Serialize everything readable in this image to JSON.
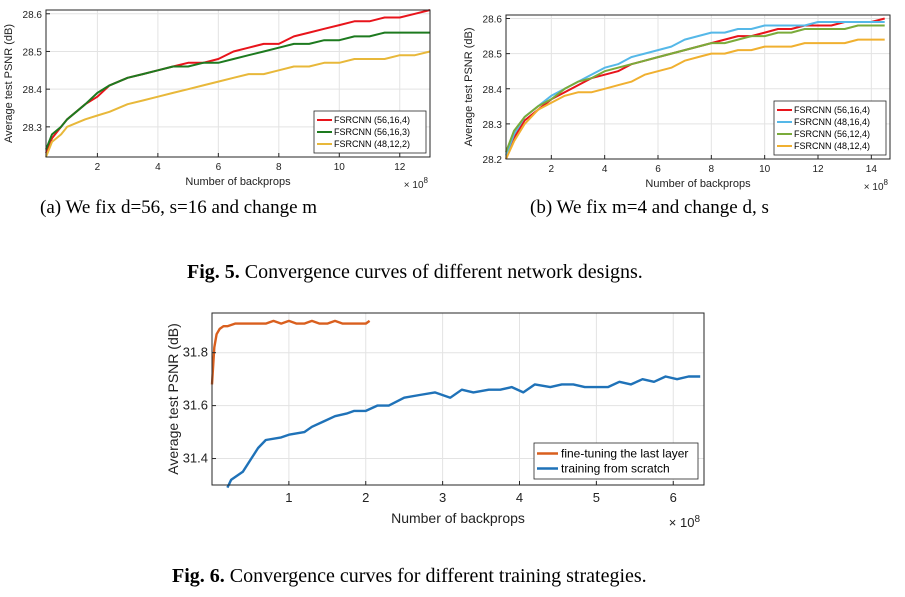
{
  "captions": {
    "sub_a": "(a) We fix d=56, s=16 and change m",
    "sub_b": "(b) We fix m=4 and change d, s",
    "fig5_label": "Fig. 5.",
    "fig5_text": " Convergence curves of different network designs.",
    "fig6_label": "Fig. 6.",
    "fig6_text": " Convergence curves for different training strategies."
  },
  "chart_data": [
    {
      "id": "chart-a",
      "type": "line",
      "xlabel": "Number of backprops",
      "ylabel": "Average test PSNR (dB)",
      "x_multiplier": "× 10^8",
      "xlim": [
        0.3,
        13
      ],
      "ylim": [
        28.22,
        28.61
      ],
      "xticks": [
        2,
        4,
        6,
        8,
        10,
        12
      ],
      "yticks": [
        28.3,
        28.4,
        28.5,
        28.6
      ],
      "grid": true,
      "legend_position": "bottom-right",
      "series": [
        {
          "name": "FSRCNN (56,16,4)",
          "color": "#e8141b",
          "x": [
            0.3,
            0.5,
            0.8,
            1.0,
            1.3,
            1.6,
            2.0,
            2.4,
            3.0,
            3.5,
            4.0,
            4.5,
            5.0,
            5.5,
            6.0,
            6.5,
            7.0,
            7.5,
            8.0,
            8.5,
            9.0,
            9.5,
            10.0,
            10.5,
            11.0,
            11.5,
            12.0,
            12.5,
            13.0
          ],
          "y": [
            28.23,
            28.27,
            28.3,
            28.32,
            28.34,
            28.36,
            28.38,
            28.41,
            28.43,
            28.44,
            28.45,
            28.46,
            28.47,
            28.47,
            28.48,
            28.5,
            28.51,
            28.52,
            28.52,
            28.54,
            28.55,
            28.56,
            28.57,
            28.58,
            28.58,
            28.59,
            28.59,
            28.6,
            28.61
          ]
        },
        {
          "name": "FSRCNN (56,16,3)",
          "color": "#1d7a1f",
          "x": [
            0.3,
            0.5,
            0.8,
            1.0,
            1.3,
            1.6,
            2.0,
            2.4,
            3.0,
            3.5,
            4.0,
            4.5,
            5.0,
            5.5,
            6.0,
            6.5,
            7.0,
            7.5,
            8.0,
            8.5,
            9.0,
            9.5,
            10.0,
            10.5,
            11.0,
            11.5,
            12.0,
            12.5,
            13.0
          ],
          "y": [
            28.24,
            28.28,
            28.3,
            28.32,
            28.34,
            28.36,
            28.39,
            28.41,
            28.43,
            28.44,
            28.45,
            28.46,
            28.46,
            28.47,
            28.47,
            28.48,
            28.49,
            28.5,
            28.51,
            28.52,
            28.52,
            28.53,
            28.53,
            28.54,
            28.54,
            28.55,
            28.55,
            28.55,
            28.55
          ]
        },
        {
          "name": "FSRCNN (48,12,2)",
          "color": "#e8b83a",
          "x": [
            0.3,
            0.5,
            0.8,
            1.0,
            1.3,
            1.6,
            2.0,
            2.4,
            3.0,
            3.5,
            4.0,
            4.5,
            5.0,
            5.5,
            6.0,
            6.5,
            7.0,
            7.5,
            8.0,
            8.5,
            9.0,
            9.5,
            10.0,
            10.5,
            11.0,
            11.5,
            12.0,
            12.5,
            13.0
          ],
          "y": [
            28.22,
            28.26,
            28.28,
            28.3,
            28.31,
            28.32,
            28.33,
            28.34,
            28.36,
            28.37,
            28.38,
            28.39,
            28.4,
            28.41,
            28.42,
            28.43,
            28.44,
            28.44,
            28.45,
            28.46,
            28.46,
            28.47,
            28.47,
            28.48,
            28.48,
            28.48,
            28.49,
            28.49,
            28.5
          ]
        }
      ]
    },
    {
      "id": "chart-b",
      "type": "line",
      "xlabel": "Number of backprops",
      "ylabel": "Average test PSNR (dB)",
      "x_multiplier": "× 10^8",
      "xlim": [
        0.3,
        14.7
      ],
      "ylim": [
        28.2,
        28.61
      ],
      "xticks": [
        2,
        4,
        6,
        8,
        10,
        12,
        14
      ],
      "yticks": [
        28.2,
        28.3,
        28.4,
        28.5,
        28.6
      ],
      "grid": true,
      "legend_position": "bottom-right",
      "series": [
        {
          "name": "FSRCNN (56,16,4)",
          "color": "#e8141b",
          "x": [
            0.3,
            0.6,
            1.0,
            1.5,
            2.0,
            2.5,
            3.0,
            3.5,
            4.0,
            4.5,
            5.0,
            5.5,
            6.0,
            6.5,
            7.0,
            7.5,
            8.0,
            8.5,
            9.0,
            9.5,
            10.0,
            10.5,
            11.0,
            11.5,
            12.0,
            12.5,
            13.0,
            13.5,
            14.0,
            14.5
          ],
          "y": [
            28.2,
            28.26,
            28.31,
            28.34,
            28.37,
            28.39,
            28.41,
            28.43,
            28.44,
            28.45,
            28.47,
            28.48,
            28.49,
            28.5,
            28.51,
            28.52,
            28.53,
            28.54,
            28.55,
            28.55,
            28.56,
            28.57,
            28.57,
            28.58,
            28.58,
            28.58,
            28.59,
            28.59,
            28.59,
            28.6
          ]
        },
        {
          "name": "FSRCNN (48,16,4)",
          "color": "#55b8e8",
          "x": [
            0.3,
            0.6,
            1.0,
            1.5,
            2.0,
            2.5,
            3.0,
            3.5,
            4.0,
            4.5,
            5.0,
            5.5,
            6.0,
            6.5,
            7.0,
            7.5,
            8.0,
            8.5,
            9.0,
            9.5,
            10.0,
            10.5,
            11.0,
            11.5,
            12.0,
            12.5,
            13.0,
            13.5,
            14.0,
            14.5
          ],
          "y": [
            28.21,
            28.27,
            28.32,
            28.35,
            28.38,
            28.4,
            28.42,
            28.44,
            28.46,
            28.47,
            28.49,
            28.5,
            28.51,
            28.52,
            28.54,
            28.55,
            28.56,
            28.56,
            28.57,
            28.57,
            28.58,
            28.58,
            28.58,
            28.58,
            28.59,
            28.59,
            28.59,
            28.59,
            28.59,
            28.59
          ]
        },
        {
          "name": "FSRCNN (56,12,4)",
          "color": "#7aab3a",
          "x": [
            0.3,
            0.6,
            1.0,
            1.5,
            2.0,
            2.5,
            3.0,
            3.5,
            4.0,
            4.5,
            5.0,
            5.5,
            6.0,
            6.5,
            7.0,
            7.5,
            8.0,
            8.5,
            9.0,
            9.5,
            10.0,
            10.5,
            11.0,
            11.5,
            12.0,
            12.5,
            13.0,
            13.5,
            14.0,
            14.5
          ],
          "y": [
            28.22,
            28.28,
            28.32,
            28.35,
            28.37,
            28.4,
            28.42,
            28.43,
            28.45,
            28.46,
            28.47,
            28.48,
            28.49,
            28.5,
            28.51,
            28.52,
            28.53,
            28.53,
            28.54,
            28.55,
            28.55,
            28.56,
            28.56,
            28.57,
            28.57,
            28.57,
            28.57,
            28.58,
            28.58,
            28.58
          ]
        },
        {
          "name": "FSRCNN (48,12,4)",
          "color": "#f0b030",
          "x": [
            0.3,
            0.6,
            1.0,
            1.5,
            2.0,
            2.5,
            3.0,
            3.5,
            4.0,
            4.5,
            5.0,
            5.5,
            6.0,
            6.5,
            7.0,
            7.5,
            8.0,
            8.5,
            9.0,
            9.5,
            10.0,
            10.5,
            11.0,
            11.5,
            12.0,
            12.5,
            13.0,
            13.5,
            14.0,
            14.5
          ],
          "y": [
            28.2,
            28.25,
            28.3,
            28.34,
            28.36,
            28.38,
            28.39,
            28.39,
            28.4,
            28.41,
            28.42,
            28.44,
            28.45,
            28.46,
            28.48,
            28.49,
            28.5,
            28.5,
            28.51,
            28.51,
            28.52,
            28.52,
            28.52,
            28.53,
            28.53,
            28.53,
            28.53,
            28.54,
            28.54,
            28.54
          ]
        }
      ]
    },
    {
      "id": "chart-c",
      "type": "line",
      "xlabel": "Number of backprops",
      "ylabel": "Average test PSNR (dB)",
      "x_multiplier": "× 10^8",
      "xlim": [
        0,
        6.4
      ],
      "ylim": [
        31.3,
        31.95
      ],
      "xticks": [
        1,
        2,
        3,
        4,
        5,
        6
      ],
      "yticks": [
        31.4,
        31.6,
        31.8
      ],
      "grid": true,
      "legend_position": "bottom-right",
      "series": [
        {
          "name": "fine-tuning the last layer",
          "color": "#d95f1e",
          "x": [
            0.0,
            0.03,
            0.06,
            0.1,
            0.15,
            0.2,
            0.3,
            0.4,
            0.5,
            0.6,
            0.7,
            0.8,
            0.9,
            1.0,
            1.1,
            1.2,
            1.3,
            1.4,
            1.5,
            1.6,
            1.7,
            1.8,
            1.9,
            2.0,
            2.05
          ],
          "y": [
            31.68,
            31.82,
            31.87,
            31.89,
            31.9,
            31.9,
            31.91,
            31.91,
            31.91,
            31.91,
            31.91,
            31.92,
            31.91,
            31.92,
            31.91,
            31.91,
            31.92,
            31.91,
            31.91,
            31.92,
            31.91,
            31.91,
            31.91,
            31.91,
            31.92
          ]
        },
        {
          "name": "training from scratch",
          "color": "#1f72b8",
          "x": [
            0.2,
            0.25,
            0.4,
            0.6,
            0.7,
            0.9,
            1.0,
            1.2,
            1.3,
            1.45,
            1.6,
            1.75,
            1.85,
            2.0,
            2.15,
            2.3,
            2.5,
            2.7,
            2.9,
            3.1,
            3.25,
            3.4,
            3.6,
            3.75,
            3.9,
            4.05,
            4.2,
            4.4,
            4.55,
            4.7,
            4.85,
            5.0,
            5.15,
            5.3,
            5.45,
            5.6,
            5.75,
            5.9,
            6.05,
            6.2,
            6.35
          ],
          "y": [
            31.29,
            31.32,
            31.35,
            31.44,
            31.47,
            31.48,
            31.49,
            31.5,
            31.52,
            31.54,
            31.56,
            31.57,
            31.58,
            31.58,
            31.6,
            31.6,
            31.63,
            31.64,
            31.65,
            31.63,
            31.66,
            31.65,
            31.66,
            31.66,
            31.67,
            31.65,
            31.68,
            31.67,
            31.68,
            31.68,
            31.67,
            31.67,
            31.67,
            31.69,
            31.68,
            31.7,
            31.69,
            31.71,
            31.7,
            31.71,
            31.71
          ]
        }
      ]
    }
  ]
}
